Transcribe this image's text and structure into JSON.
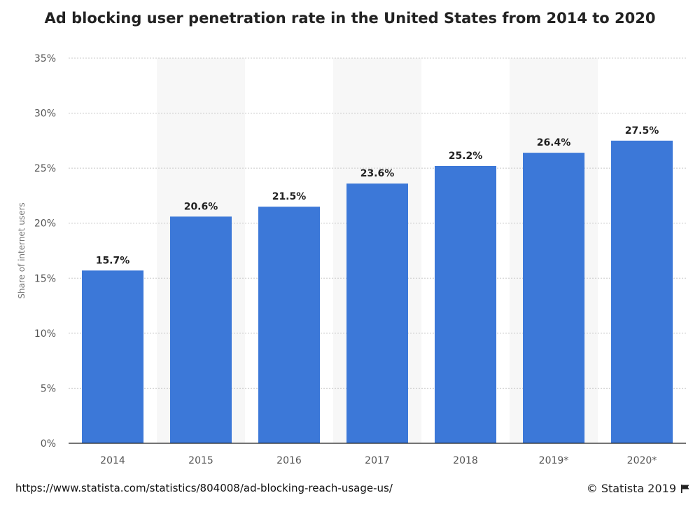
{
  "chart_data": {
    "type": "bar",
    "title": "Ad blocking user penetration rate in the United States from 2014 to 2020",
    "xlabel": "",
    "ylabel": "Share of internet users",
    "categories": [
      "2014",
      "2015",
      "2016",
      "2017",
      "2018",
      "2019*",
      "2020*"
    ],
    "values": [
      15.7,
      20.6,
      21.5,
      23.6,
      25.2,
      26.4,
      27.5
    ],
    "value_labels": [
      "15.7%",
      "20.6%",
      "21.5%",
      "23.6%",
      "25.2%",
      "26.4%",
      "27.5%"
    ],
    "ylim": [
      0,
      35
    ],
    "yticks": [
      0,
      5,
      10,
      15,
      20,
      25,
      30,
      35
    ],
    "ytick_labels": [
      "0%",
      "5%",
      "10%",
      "15%",
      "20%",
      "25%",
      "30%",
      "35%"
    ],
    "grid": true,
    "bar_color": "#3c78d8"
  },
  "footer": {
    "source_url": "https://www.statista.com/statistics/804008/ad-blocking-reach-usage-us/",
    "copyright": "© Statista 2019"
  }
}
